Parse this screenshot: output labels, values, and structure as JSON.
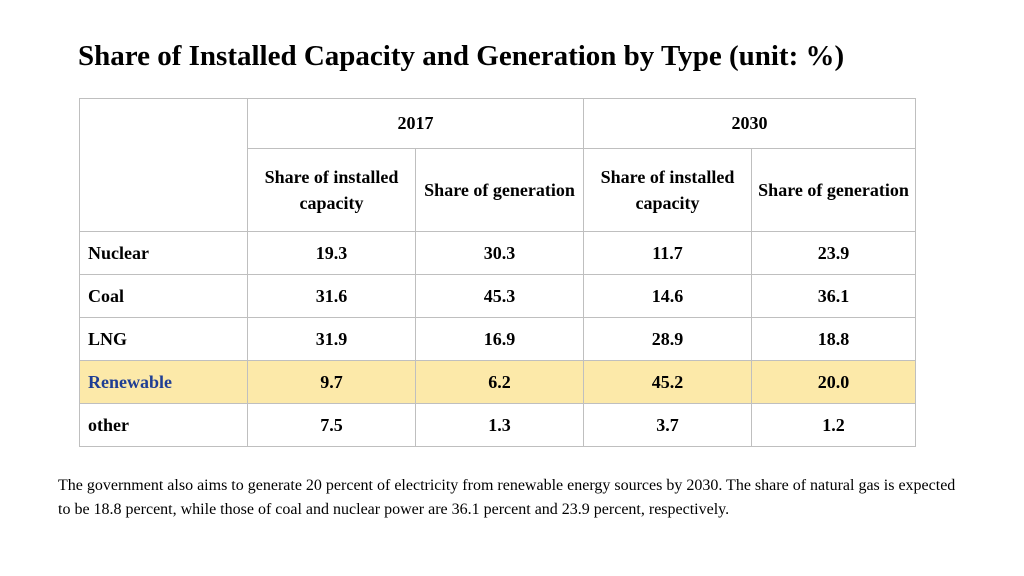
{
  "title": "Share of Installed Capacity and Generation by Type (unit: %)",
  "table": {
    "years": [
      "2017",
      "2030"
    ],
    "subheaders": [
      "Share of installed capacity",
      "Share of generation",
      "Share of installed capacity",
      "Share of generation"
    ],
    "rows": [
      {
        "label": "Nuclear",
        "values": [
          "19.3",
          "30.3",
          "11.7",
          "23.9"
        ]
      },
      {
        "label": "Coal",
        "values": [
          "31.6",
          "45.3",
          "14.6",
          "36.1"
        ]
      },
      {
        "label": "LNG",
        "values": [
          "31.9",
          "16.9",
          "28.9",
          "18.8"
        ]
      },
      {
        "label": "Renewable",
        "values": [
          "9.7",
          "6.2",
          "45.2",
          "20.0"
        ]
      },
      {
        "label": "other",
        "values": [
          "7.5",
          "1.3",
          "3.7",
          "1.2"
        ]
      }
    ]
  },
  "colors": {
    "highlight_background": "#fce9a9",
    "highlight_label": "#1f3e94",
    "border": "#bfbfbf"
  },
  "description": "The government also aims to generate 20 percent of electricity from renewable energy sources by 2030. The share of natural gas is expected to be 18.8 percent, while those of coal and nuclear power are 36.1 percent and 23.9 percent, respectively."
}
